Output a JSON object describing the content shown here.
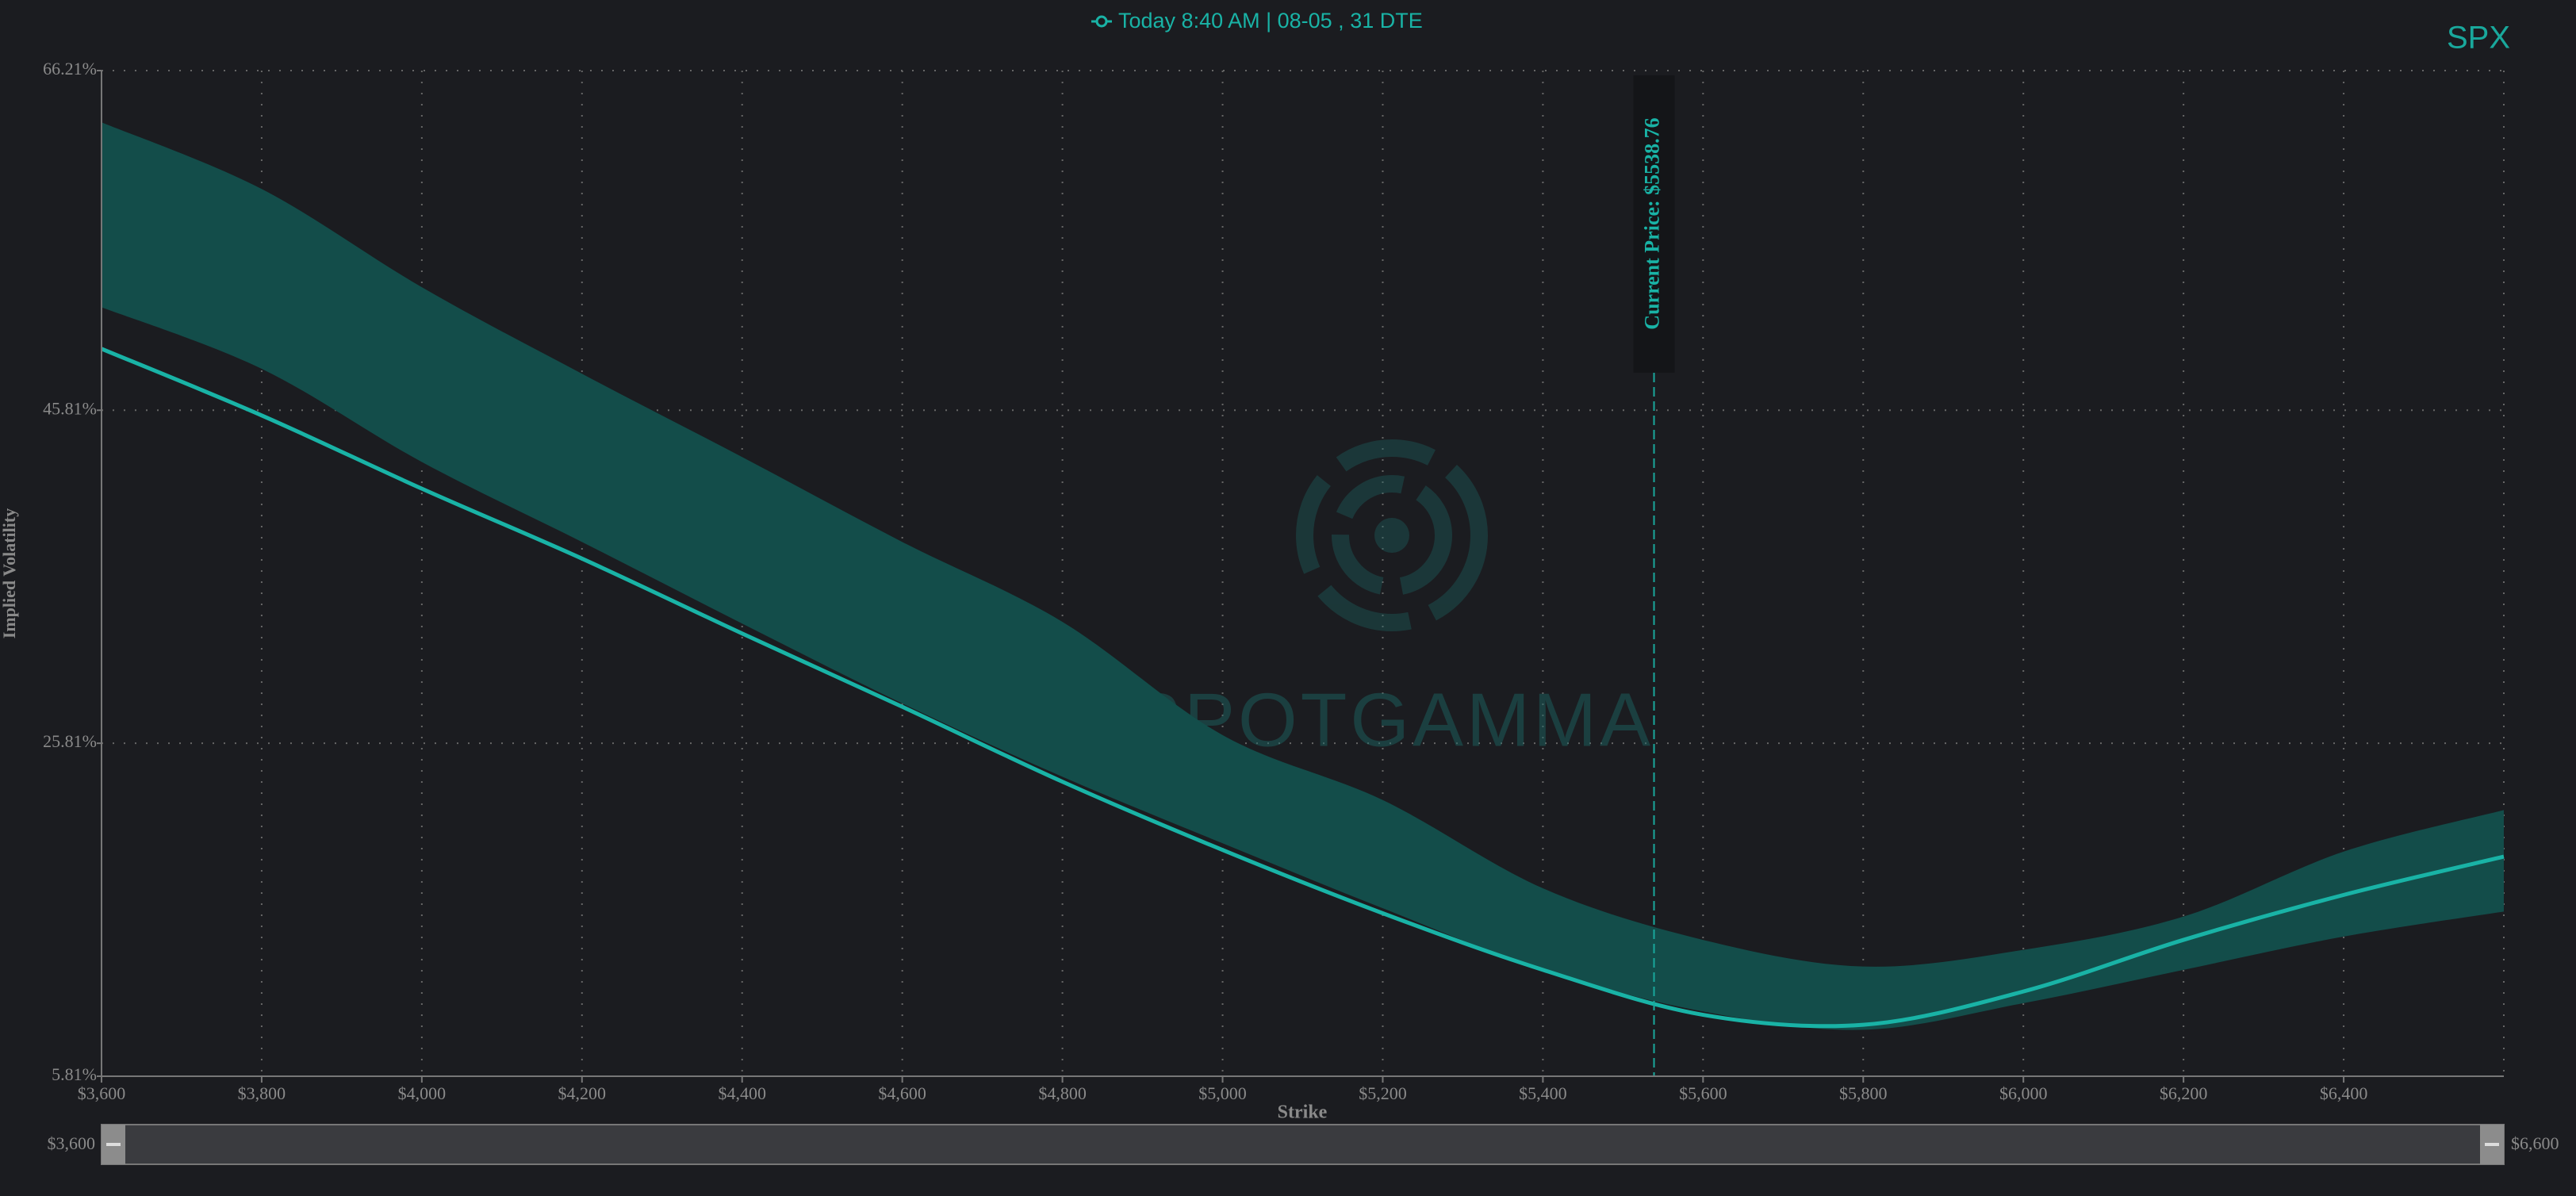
{
  "chart_data": {
    "type": "line",
    "title": "Today 8:40 AM | 08-05 , 31 DTE",
    "symbol": "SPX",
    "watermark": "SPOTGAMMA",
    "x_label": "Strike",
    "y_label": "Implied Volatility",
    "x": [
      3600,
      3800,
      4000,
      4200,
      4400,
      4600,
      4800,
      5000,
      5200,
      5400,
      5600,
      5800,
      6000,
      6200,
      6400,
      6600
    ],
    "series": [
      {
        "name": "Today 8:40 AM | 08-05 , 31 DTE",
        "color": "#19b3a6",
        "values": [
          49.5,
          45.5,
          41.1,
          36.9,
          32.4,
          28.0,
          23.5,
          19.4,
          15.6,
          12.2,
          9.5,
          8.9,
          10.9,
          14.0,
          16.7,
          19.0
        ]
      }
    ],
    "band": {
      "color": "#134d4a",
      "upper": [
        63.1,
        59.1,
        53.2,
        48.0,
        43.0,
        37.9,
        33.1,
        26.3,
        22.4,
        17.1,
        14.0,
        12.4,
        13.4,
        15.4,
        19.3,
        21.8
      ],
      "lower": [
        52.0,
        48.3,
        42.7,
        37.9,
        33.0,
        28.2,
        23.8,
        19.8,
        15.9,
        12.2,
        9.7,
        8.6,
        10.2,
        12.2,
        14.2,
        15.7
      ]
    },
    "current_price": 5538.76,
    "current_price_label": "Current Price: $5538.76",
    "xlim": [
      3600,
      6600
    ],
    "ylim": [
      5.81,
      66.21
    ],
    "xticks": [
      {
        "value": 3600,
        "label": "$3,600"
      },
      {
        "value": 3800,
        "label": "$3,800"
      },
      {
        "value": 4000,
        "label": "$4,000"
      },
      {
        "value": 4200,
        "label": "$4,200"
      },
      {
        "value": 4400,
        "label": "$4,400"
      },
      {
        "value": 4600,
        "label": "$4,600"
      },
      {
        "value": 4800,
        "label": "$4,800"
      },
      {
        "value": 5000,
        "label": "$5,000"
      },
      {
        "value": 5200,
        "label": "$5,200"
      },
      {
        "value": 5400,
        "label": "$5,400"
      },
      {
        "value": 5600,
        "label": "$5,600"
      },
      {
        "value": 5800,
        "label": "$5,800"
      },
      {
        "value": 6000,
        "label": "$6,000"
      },
      {
        "value": 6200,
        "label": "$6,200"
      },
      {
        "value": 6400,
        "label": "$6,400"
      }
    ],
    "yticks": [
      {
        "value": 5.81,
        "label": "5.81%"
      },
      {
        "value": 25.81,
        "label": "25.81%"
      },
      {
        "value": 45.81,
        "label": "45.81%"
      },
      {
        "value": 66.21,
        "label": "66.21%"
      }
    ],
    "range_slider": {
      "min": {
        "value": 3600,
        "label": "$3,600"
      },
      "max": {
        "value": 6600,
        "label": "$6,600"
      }
    },
    "grid": true
  }
}
